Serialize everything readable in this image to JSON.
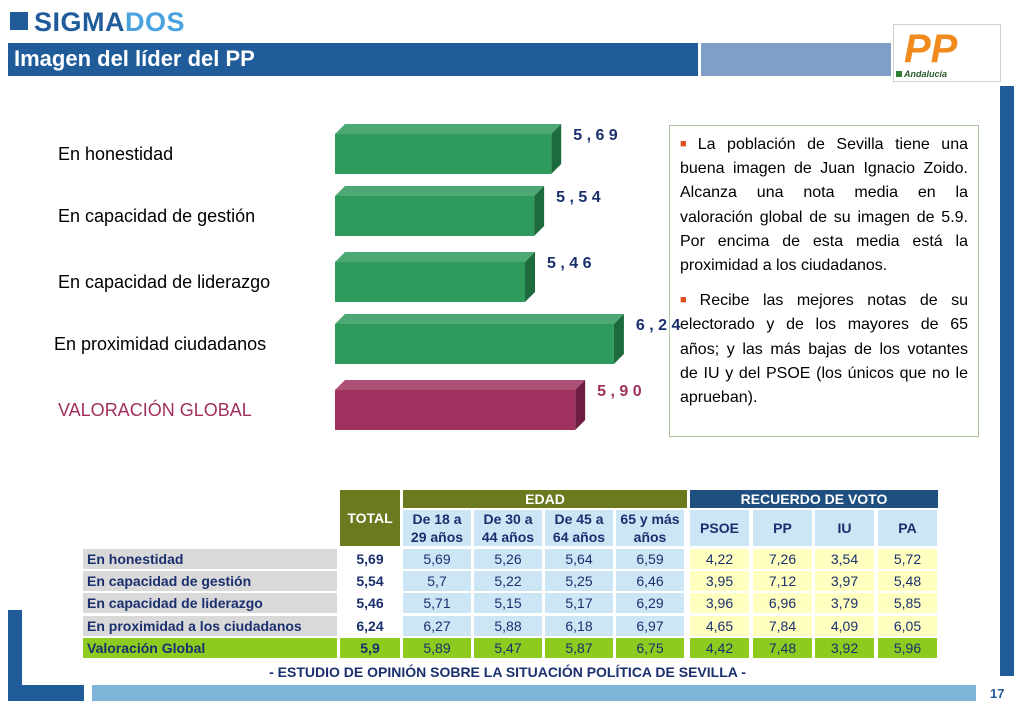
{
  "header": {
    "brand_part1": "SIGMA",
    "brand_part2": "DOS",
    "title": "Imagen del líder del PP",
    "party_logo_text": "PP",
    "party_logo_region": "Andalucía"
  },
  "chart_data": {
    "type": "bar",
    "orientation": "horizontal",
    "categories": [
      "En honestidad",
      "En capacidad de gestión",
      "En capacidad de liderazgo",
      "En proximidad ciudadanos",
      "VALORACIÓN GLOBAL"
    ],
    "values": [
      5.69,
      5.54,
      5.46,
      6.24,
      5.9
    ],
    "value_labels": [
      "5 , 6 9",
      "5 , 5 4",
      "5 , 4 6",
      "6 , 2 4",
      "5 , 9 0"
    ],
    "xlim": [
      0,
      7
    ],
    "grid": false,
    "legend": "none",
    "colors": {
      "bar": "#2e9a5c",
      "bar_dark": "#1d6a3d",
      "highlight": "#a0315e",
      "highlight_dark": "#6e1e40",
      "highlight_label": "#a0315e",
      "value_normal": "#1a2f6e",
      "value_highlight": "#a0315e"
    }
  },
  "notes": [
    "La población de Sevilla  tiene una buena imagen de Juan Ignacio Zoido. Alcanza una nota media en la valoración global de su imagen de 5.9. Por encima de esta media está la proximidad a los ciudadanos.",
    "Recibe las mejores notas de su electorado y de los mayores de 65 años; y las más bajas de los votantes de IU y del PSOE (los únicos que no le aprueban)."
  ],
  "table": {
    "total_header": "TOTAL",
    "group_age": "EDAD",
    "group_vote": "RECUERDO DE VOTO",
    "age_cols": [
      "De 18 a 29 años",
      "De 30 a 44 años",
      "De 45 a 64 años",
      "65 y más años"
    ],
    "vote_cols": [
      "PSOE",
      "PP",
      "IU",
      "PA"
    ],
    "rows": [
      {
        "label": "En honestidad",
        "total": "5,69",
        "age": [
          "5,69",
          "5,26",
          "5,64",
          "6,59"
        ],
        "vote": [
          "4,22",
          "7,26",
          "3,54",
          "5,72"
        ]
      },
      {
        "label": "En capacidad de gestión",
        "total": "5,54",
        "age": [
          "5,7",
          "5,22",
          "5,25",
          "6,46"
        ],
        "vote": [
          "3,95",
          "7,12",
          "3,97",
          "5,48"
        ]
      },
      {
        "label": "En capacidad de liderazgo",
        "total": "5,46",
        "age": [
          "5,71",
          "5,15",
          "5,17",
          "6,29"
        ],
        "vote": [
          "3,96",
          "6,96",
          "3,79",
          "5,85"
        ]
      },
      {
        "label": "En proximidad a los ciudadanos",
        "total": "6,24",
        "age": [
          "6,27",
          "5,88",
          "6,18",
          "6,97"
        ],
        "vote": [
          "4,65",
          "7,84",
          "4,09",
          "6,05"
        ]
      },
      {
        "label": "Valoración Global",
        "total": "5,9",
        "age": [
          "5,89",
          "5,47",
          "5,87",
          "6,75"
        ],
        "vote": [
          "4,42",
          "7,48",
          "3,92",
          "5,96"
        ]
      }
    ]
  },
  "footer": {
    "study_title": "- ESTUDIO DE OPINIÓN SOBRE LA SITUACIÓN POLÍTICA DE SEVILLA  -",
    "page_number": "17"
  }
}
